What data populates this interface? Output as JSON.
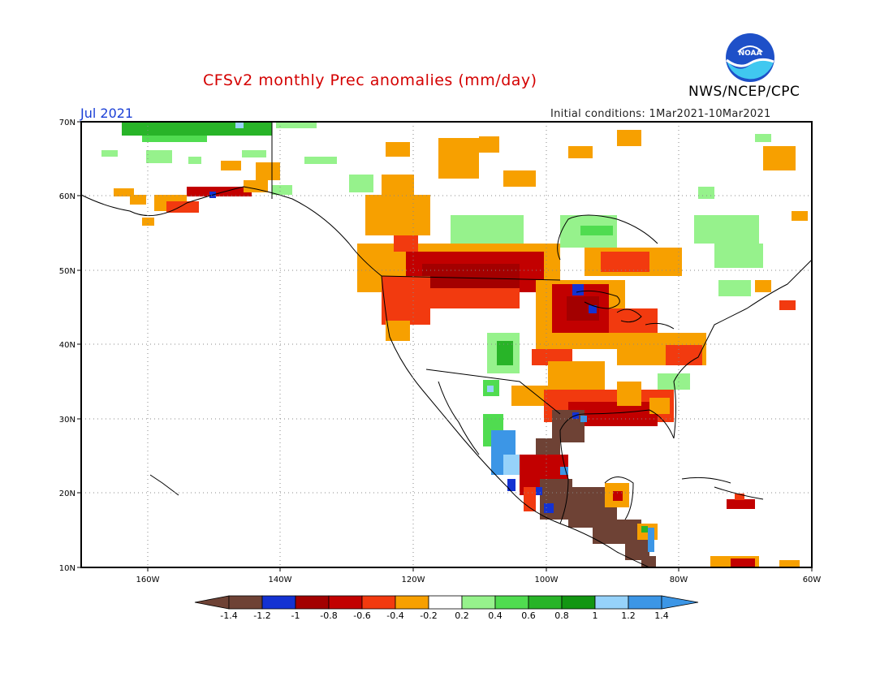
{
  "header": {
    "title": "CFSv2 monthly Prec anomalies (mm/day)",
    "period": "Jul 2021",
    "initial_conditions": "Initial conditions: 1Mar2021-10Mar2021",
    "agency": "NWS/NCEP/CPC",
    "logo_text": "NOAA"
  },
  "map": {
    "lat_labels": [
      "70N",
      "60N",
      "50N",
      "40N",
      "30N",
      "20N",
      "10N"
    ],
    "lon_labels": [
      "160W",
      "140W",
      "120W",
      "100W",
      "80W",
      "60W"
    ]
  },
  "colorbar": {
    "labels": [
      "-1.4",
      "-1.2",
      "-1",
      "-0.8",
      "-0.6",
      "-0.4",
      "-0.2",
      "0.2",
      "0.4",
      "0.6",
      "0.8",
      "1",
      "1.2",
      "1.4"
    ],
    "colors": [
      "#6e4235",
      "#6e4235",
      "#1432d2",
      "#a30000",
      "#c20000",
      "#f23a0f",
      "#f7a000",
      "#ffffff",
      "#96f28c",
      "#50dc50",
      "#28b428",
      "#129612",
      "#96d2fa",
      "#3c96e6",
      "#3c96e6"
    ],
    "palette": {
      "brown": "#6e4235",
      "blue": "#1432d2",
      "darkred": "#a30000",
      "red": "#c20000",
      "redorange": "#f23a0f",
      "orange": "#f7a000",
      "white": "#ffffff",
      "lightgreen": "#96f28c",
      "green": "#50dc50",
      "midgreen": "#28b428",
      "darkgreen": "#129612",
      "lightblue": "#96d2fa",
      "skyblue": "#3c96e6"
    }
  }
}
